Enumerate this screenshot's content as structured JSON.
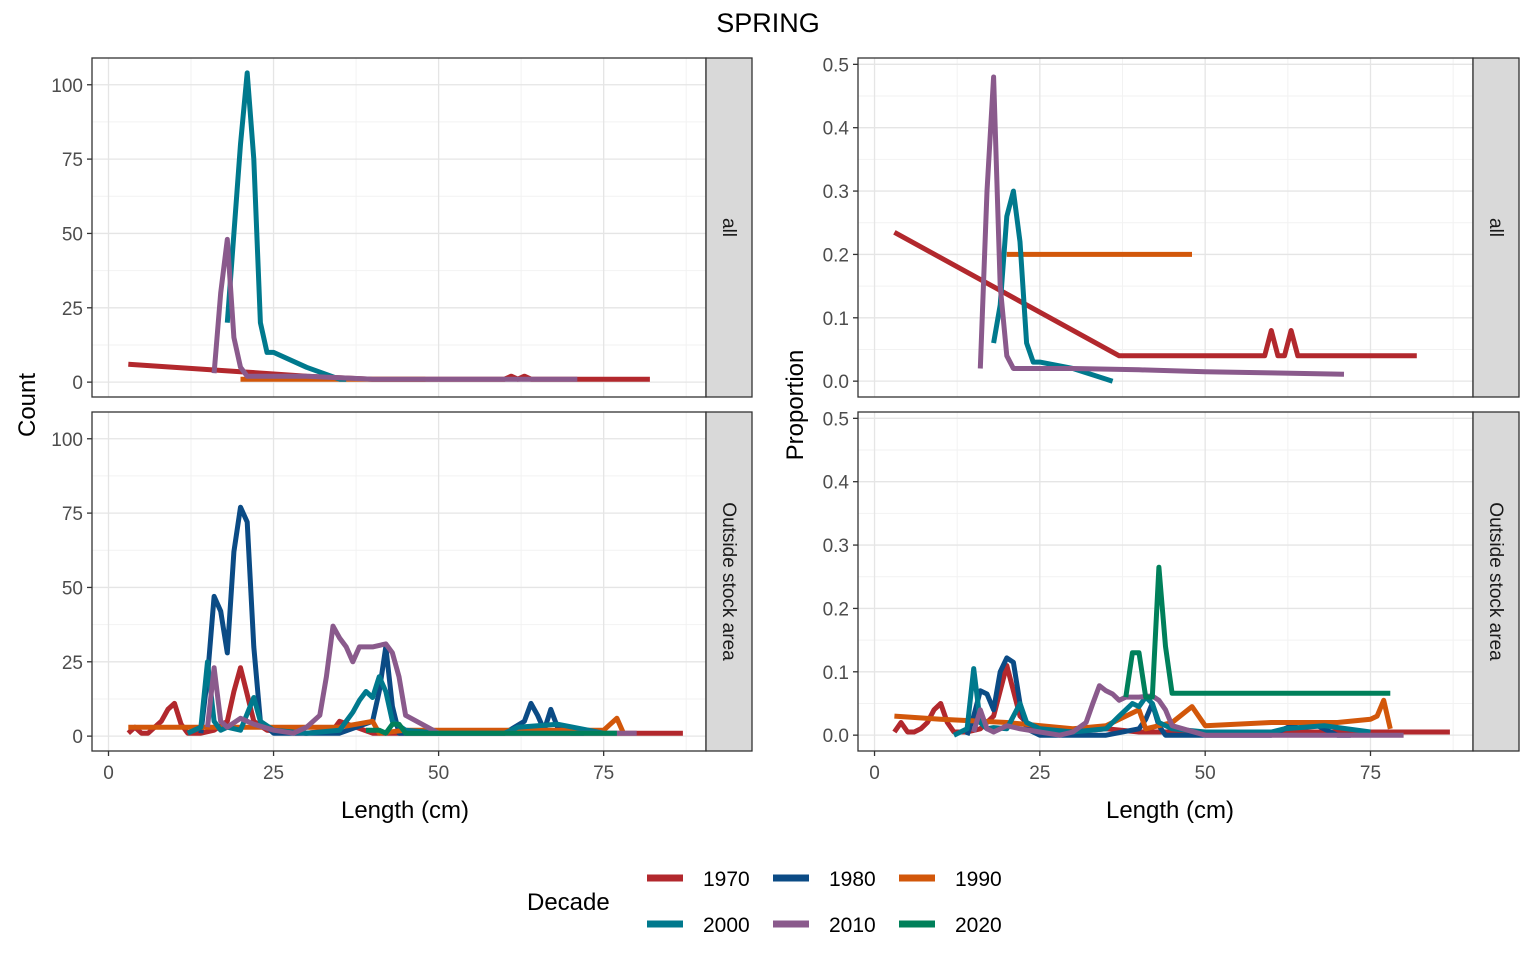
{
  "title": "SPRING",
  "legend": {
    "title": "Decade",
    "items": [
      {
        "label": "1970",
        "color": "#B2282D"
      },
      {
        "label": "1980",
        "color": "#0B4B85"
      },
      {
        "label": "1990",
        "color": "#D2570A"
      },
      {
        "label": "2000",
        "color": "#00798D"
      },
      {
        "label": "2010",
        "color": "#8A5A8C"
      },
      {
        "label": "2020",
        "color": "#00805A"
      }
    ]
  },
  "chart_data": [
    {
      "type": "line",
      "panel": "count-all",
      "facet": "all",
      "xlabel": "Length (cm)",
      "ylabel": "Count",
      "xlim": [
        0,
        88
      ],
      "ylim": [
        0,
        100
      ],
      "xticks": [
        "0",
        "25",
        "50",
        "75"
      ],
      "yticks": [
        "0",
        "25",
        "50",
        "75",
        "100"
      ],
      "grid": true,
      "series": [
        {
          "name": "1970",
          "x": [
            3,
            20,
            30,
            40,
            50,
            60,
            61,
            62,
            63,
            64,
            70,
            82
          ],
          "y": [
            6,
            3.5,
            2,
            1,
            1,
            1,
            2,
            1,
            2,
            1,
            1,
            1
          ]
        },
        {
          "name": "1990",
          "x": [
            20,
            35,
            48
          ],
          "y": [
            1,
            1,
            1
          ]
        },
        {
          "name": "2000",
          "x": [
            18,
            19,
            20,
            21,
            22,
            23,
            24,
            25,
            30,
            35,
            36
          ],
          "y": [
            20,
            50,
            80,
            104,
            75,
            20,
            10,
            10,
            5,
            1,
            1
          ]
        },
        {
          "name": "2010",
          "x": [
            16,
            17,
            18,
            19,
            20,
            21,
            30,
            40,
            50,
            60,
            70,
            71
          ],
          "y": [
            3,
            30,
            48,
            15,
            5,
            2,
            2,
            1,
            1,
            1,
            1,
            1
          ]
        }
      ]
    },
    {
      "type": "line",
      "panel": "proportion-all",
      "facet": "all",
      "xlabel": "Length (cm)",
      "ylabel": "Proportion",
      "xlim": [
        0,
        88
      ],
      "ylim": [
        0,
        0.5
      ],
      "xticks": [
        "0",
        "25",
        "50",
        "75"
      ],
      "yticks": [
        "0.0",
        "0.1",
        "0.2",
        "0.3",
        "0.4",
        "0.5"
      ],
      "grid": true,
      "series": [
        {
          "name": "1970",
          "x": [
            3,
            37,
            59,
            60,
            61,
            62,
            63,
            64,
            82
          ],
          "y": [
            0.235,
            0.04,
            0.04,
            0.08,
            0.04,
            0.04,
            0.08,
            0.04,
            0.04
          ]
        },
        {
          "name": "1990",
          "x": [
            20,
            48
          ],
          "y": [
            0.2,
            0.2
          ]
        },
        {
          "name": "2000",
          "x": [
            18,
            19,
            20,
            21,
            22,
            23,
            24,
            25,
            30,
            36
          ],
          "y": [
            0.06,
            0.12,
            0.26,
            0.3,
            0.22,
            0.06,
            0.03,
            0.03,
            0.02,
            0.0
          ]
        },
        {
          "name": "2010",
          "x": [
            16,
            17,
            18,
            19,
            20,
            21,
            30,
            40,
            50,
            60,
            71
          ],
          "y": [
            0.02,
            0.3,
            0.48,
            0.15,
            0.04,
            0.02,
            0.02,
            0.018,
            0.015,
            0.013,
            0.011
          ]
        }
      ]
    },
    {
      "type": "line",
      "panel": "count-outside",
      "facet": "Outside stock area",
      "xlabel": "Length (cm)",
      "ylabel": "Count",
      "xlim": [
        0,
        88
      ],
      "ylim": [
        0,
        100
      ],
      "xticks": [
        "0",
        "25",
        "50",
        "75"
      ],
      "yticks": [
        "0",
        "25",
        "50",
        "75",
        "100"
      ],
      "grid": true,
      "series": [
        {
          "name": "1970",
          "x": [
            3,
            4,
            5,
            6,
            7,
            8,
            9,
            10,
            11,
            12,
            14,
            16,
            18,
            19,
            20,
            21,
            22,
            24,
            30,
            34,
            35,
            40,
            50,
            60,
            70,
            80,
            87
          ],
          "y": [
            1,
            3,
            1,
            1,
            3,
            5,
            9,
            11,
            4,
            1,
            1,
            2,
            5,
            15,
            23,
            14,
            5,
            2,
            1,
            2,
            5,
            1,
            1,
            1,
            1,
            1,
            1
          ]
        },
        {
          "name": "1980",
          "x": [
            14,
            15,
            16,
            17,
            18,
            19,
            20,
            21,
            22,
            23,
            25,
            30,
            35,
            40,
            41,
            42,
            43,
            44,
            50,
            60,
            63,
            64,
            65,
            66,
            67,
            68,
            70,
            72
          ],
          "y": [
            1,
            20,
            47,
            42,
            28,
            62,
            77,
            72,
            30,
            5,
            1,
            1,
            1,
            5,
            15,
            30,
            10,
            1,
            1,
            1,
            5,
            11,
            7,
            2,
            9,
            3,
            1,
            1
          ]
        },
        {
          "name": "1990",
          "x": [
            3,
            10,
            20,
            30,
            35,
            40,
            41,
            45,
            50,
            60,
            70,
            75,
            76,
            77,
            78
          ],
          "y": [
            3,
            3,
            3,
            3,
            3,
            5,
            1,
            2,
            2,
            2,
            2,
            2,
            4,
            6,
            1
          ]
        },
        {
          "name": "2000",
          "x": [
            12,
            14,
            15,
            16,
            17,
            18,
            20,
            22,
            23,
            25,
            30,
            35,
            36,
            37,
            38,
            39,
            40,
            41,
            42,
            43,
            45,
            50,
            60,
            62,
            68,
            75
          ],
          "y": [
            1,
            3,
            25,
            5,
            2,
            3,
            2,
            13,
            5,
            2,
            1,
            2,
            5,
            8,
            12,
            15,
            13,
            20,
            15,
            5,
            2,
            1,
            1,
            3,
            4,
            1
          ]
        },
        {
          "name": "2010",
          "x": [
            15,
            16,
            17,
            18,
            20,
            22,
            25,
            28,
            30,
            32,
            33,
            34,
            35,
            36,
            37,
            38,
            40,
            42,
            43,
            44,
            45,
            50,
            60,
            70,
            80
          ],
          "y": [
            3,
            23,
            5,
            3,
            6,
            4,
            2,
            1,
            3,
            7,
            20,
            37,
            33,
            30,
            25,
            30,
            30,
            31,
            28,
            20,
            7,
            1,
            1,
            1,
            1
          ]
        },
        {
          "name": "2020",
          "x": [
            39,
            40,
            41,
            42,
            43,
            44,
            45,
            60,
            77
          ],
          "y": [
            2,
            2,
            2,
            1,
            4,
            4,
            1,
            1,
            1
          ]
        }
      ]
    },
    {
      "type": "line",
      "panel": "proportion-outside",
      "facet": "Outside stock area",
      "xlabel": "Length (cm)",
      "ylabel": "Proportion",
      "xlim": [
        0,
        88
      ],
      "ylim": [
        0,
        0.5
      ],
      "xticks": [
        "0",
        "25",
        "50",
        "75"
      ],
      "yticks": [
        "0.0",
        "0.1",
        "0.2",
        "0.3",
        "0.4",
        "0.5"
      ],
      "grid": true,
      "series": [
        {
          "name": "1970",
          "x": [
            3,
            4,
            5,
            6,
            7,
            8,
            9,
            10,
            11,
            12,
            14,
            16,
            18,
            19,
            20,
            21,
            22,
            24,
            30,
            35,
            40,
            50,
            60,
            70,
            80,
            87
          ],
          "y": [
            0.005,
            0.02,
            0.005,
            0.005,
            0.01,
            0.02,
            0.04,
            0.05,
            0.02,
            0.005,
            0.005,
            0.01,
            0.03,
            0.07,
            0.11,
            0.07,
            0.03,
            0.01,
            0.005,
            0.01,
            0.005,
            0.005,
            0.005,
            0.005,
            0.005,
            0.005
          ]
        },
        {
          "name": "1980",
          "x": [
            14,
            15,
            16,
            17,
            18,
            19,
            20,
            21,
            22,
            23,
            25,
            30,
            35,
            40,
            41,
            42,
            43,
            44,
            50,
            60,
            64,
            67,
            70,
            72
          ],
          "y": [
            0.0,
            0.03,
            0.07,
            0.065,
            0.04,
            0.1,
            0.122,
            0.115,
            0.05,
            0.01,
            0.0,
            0.0,
            0.0,
            0.01,
            0.025,
            0.05,
            0.015,
            0.0,
            0.0,
            0.0,
            0.02,
            0.015,
            0.0,
            0.0
          ]
        },
        {
          "name": "1990",
          "x": [
            3,
            10,
            20,
            30,
            35,
            40,
            41,
            45,
            48,
            50,
            60,
            70,
            75,
            76,
            77,
            78
          ],
          "y": [
            0.03,
            0.025,
            0.02,
            0.01,
            0.015,
            0.04,
            0.01,
            0.02,
            0.045,
            0.015,
            0.02,
            0.02,
            0.025,
            0.03,
            0.055,
            0.01
          ]
        },
        {
          "name": "2000",
          "x": [
            12,
            14,
            15,
            16,
            17,
            18,
            20,
            22,
            23,
            25,
            30,
            35,
            36,
            37,
            38,
            39,
            40,
            41,
            42,
            43,
            45,
            50,
            60,
            62,
            68,
            75
          ],
          "y": [
            0.0,
            0.01,
            0.105,
            0.02,
            0.01,
            0.012,
            0.01,
            0.05,
            0.02,
            0.01,
            0.005,
            0.01,
            0.02,
            0.03,
            0.04,
            0.05,
            0.045,
            0.06,
            0.05,
            0.02,
            0.01,
            0.005,
            0.005,
            0.01,
            0.015,
            0.005
          ]
        },
        {
          "name": "2010",
          "x": [
            15,
            16,
            17,
            18,
            20,
            22,
            25,
            28,
            30,
            32,
            33,
            34,
            35,
            36,
            37,
            38,
            40,
            42,
            43,
            44,
            45,
            50,
            60,
            70,
            80
          ],
          "y": [
            0.005,
            0.04,
            0.01,
            0.005,
            0.015,
            0.01,
            0.005,
            0.0,
            0.005,
            0.02,
            0.05,
            0.078,
            0.07,
            0.065,
            0.055,
            0.06,
            0.06,
            0.062,
            0.055,
            0.04,
            0.015,
            0.0,
            0.0,
            0.0,
            0.0
          ]
        },
        {
          "name": "2020",
          "x": [
            38,
            39,
            40,
            41,
            42,
            43,
            44,
            45,
            60,
            78
          ],
          "y": [
            0.06,
            0.13,
            0.13,
            0.06,
            0.06,
            0.265,
            0.14,
            0.066,
            0.066,
            0.066
          ]
        }
      ]
    }
  ]
}
